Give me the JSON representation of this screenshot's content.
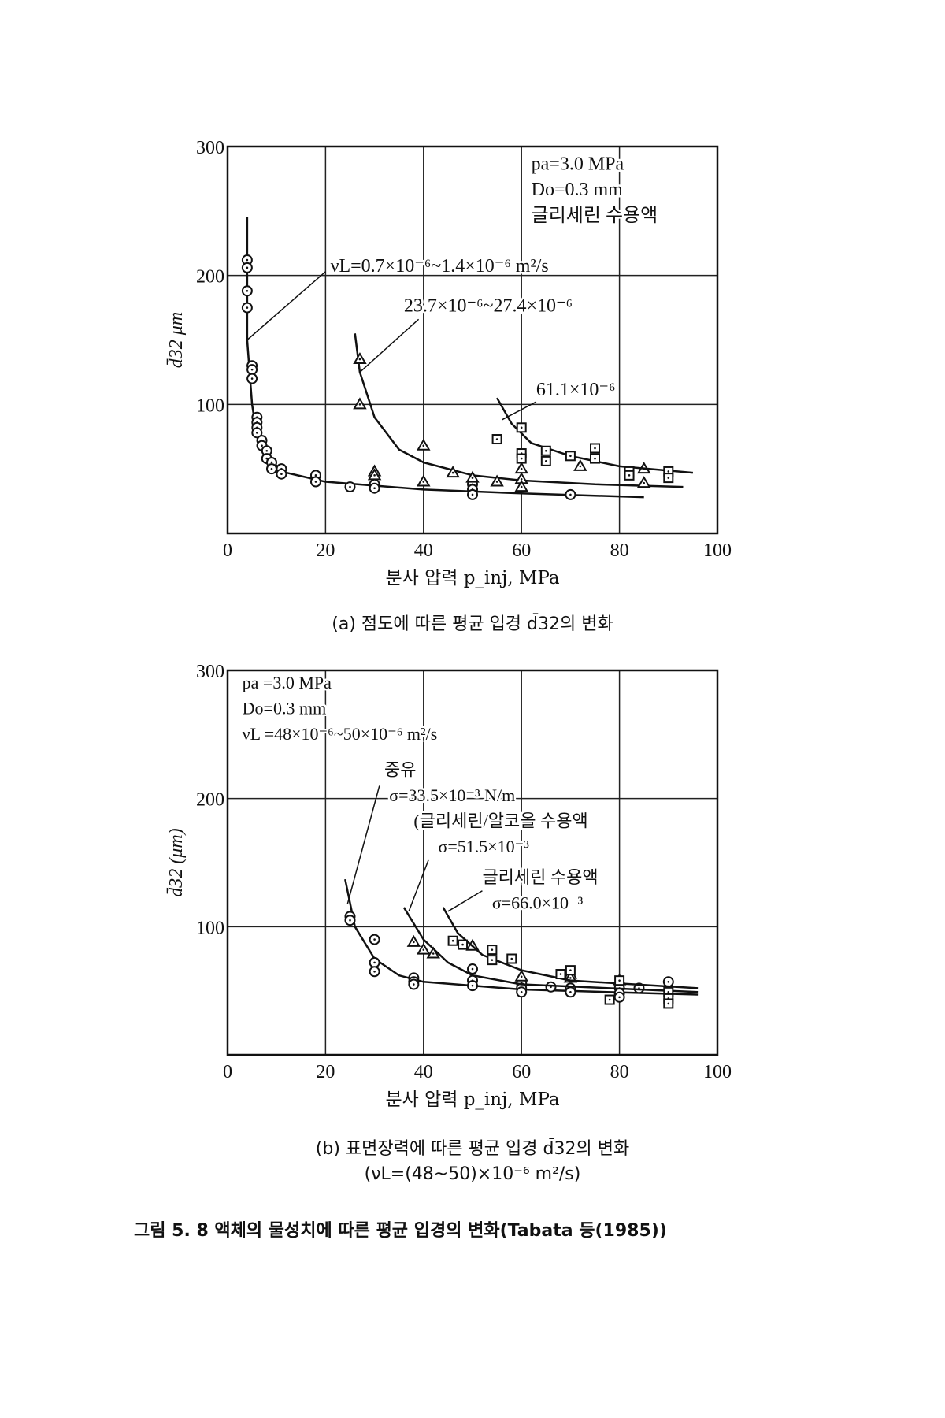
{
  "chart_data": [
    {
      "type": "scatter",
      "title": "(a) 점도에 따른 평균 입경 d̄32의 변화",
      "xlabel": "분사 압력 p_inj, MPa",
      "ylabel": "d̄32 μm",
      "xlim": [
        0,
        100
      ],
      "ylim": [
        0,
        300
      ],
      "xticks": [
        "0",
        "20",
        "40",
        "60",
        "80",
        "100"
      ],
      "yticks": [
        "100",
        "200",
        "300"
      ],
      "grid": true,
      "conditions": [
        "pa=3.0 MPa",
        "Do=0.3 mm",
        "글리세린 수용액"
      ],
      "series": [
        {
          "name": "νL=0.7×10⁻⁶~1.4×10⁻⁶ m²/s",
          "marker": "circle",
          "points": [
            [
              4,
              212
            ],
            [
              4,
              206
            ],
            [
              4,
              188
            ],
            [
              4,
              175
            ],
            [
              5,
              130
            ],
            [
              5,
              127
            ],
            [
              5,
              120
            ],
            [
              6,
              90
            ],
            [
              6,
              86
            ],
            [
              6,
              82
            ],
            [
              6,
              78
            ],
            [
              7,
              72
            ],
            [
              7,
              68
            ],
            [
              8,
              64
            ],
            [
              8,
              58
            ],
            [
              9,
              55
            ],
            [
              9,
              50
            ],
            [
              11,
              50
            ],
            [
              11,
              46
            ],
            [
              18,
              45
            ],
            [
              18,
              40
            ],
            [
              25,
              36
            ],
            [
              30,
              38
            ],
            [
              30,
              35
            ],
            [
              50,
              38
            ],
            [
              50,
              34
            ],
            [
              50,
              30
            ],
            [
              70,
              30
            ]
          ],
          "curve": [
            [
              4,
              245
            ],
            [
              4,
              150
            ],
            [
              5,
              100
            ],
            [
              6,
              75
            ],
            [
              8,
              58
            ],
            [
              12,
              47
            ],
            [
              20,
              40
            ],
            [
              40,
              34
            ],
            [
              60,
              31
            ],
            [
              85,
              28
            ]
          ]
        },
        {
          "name": "23.7×10⁻⁶~27.4×10⁻⁶",
          "marker": "triangle",
          "points": [
            [
              27,
              135
            ],
            [
              27,
              100
            ],
            [
              30,
              48
            ],
            [
              30,
              45
            ],
            [
              40,
              68
            ],
            [
              40,
              40
            ],
            [
              46,
              47
            ],
            [
              50,
              43
            ],
            [
              55,
              40
            ],
            [
              60,
              50
            ],
            [
              60,
              42
            ],
            [
              60,
              36
            ],
            [
              72,
              52
            ],
            [
              85,
              50
            ],
            [
              85,
              39
            ]
          ],
          "curve": [
            [
              26,
              155
            ],
            [
              27,
              125
            ],
            [
              30,
              90
            ],
            [
              35,
              65
            ],
            [
              40,
              55
            ],
            [
              50,
              45
            ],
            [
              60,
              41
            ],
            [
              75,
              38
            ],
            [
              93,
              36
            ]
          ]
        },
        {
          "name": "61.1×10⁻⁶",
          "marker": "square",
          "points": [
            [
              55,
              73
            ],
            [
              60,
              82
            ],
            [
              60,
              62
            ],
            [
              60,
              58
            ],
            [
              65,
              64
            ],
            [
              65,
              56
            ],
            [
              70,
              60
            ],
            [
              75,
              66
            ],
            [
              75,
              58
            ],
            [
              82,
              48
            ],
            [
              82,
              45
            ],
            [
              90,
              48
            ],
            [
              90,
              43
            ]
          ],
          "curve": [
            [
              55,
              105
            ],
            [
              58,
              85
            ],
            [
              62,
              70
            ],
            [
              70,
              60
            ],
            [
              80,
              52
            ],
            [
              95,
              47
            ]
          ]
        }
      ]
    },
    {
      "type": "scatter",
      "title": "(b) 표면장력에 따른 평균 입경 d̄32의 변화",
      "subtitle": "(νL=(48~50)×10⁻⁶ m²/s)",
      "xlabel": "분사 압력 p_inj, MPa",
      "ylabel": "d̄32 (μm)",
      "xlim": [
        0,
        100
      ],
      "ylim": [
        0,
        300
      ],
      "xticks": [
        "0",
        "20",
        "40",
        "60",
        "80",
        "100"
      ],
      "yticks": [
        "100",
        "200",
        "300"
      ],
      "grid": true,
      "conditions": [
        "pa =3.0 MPa",
        "Do=0.3 mm",
        "νL =48×10⁻⁶~50×10⁻⁶  m²/s"
      ],
      "series": [
        {
          "name": "중유",
          "label2": "σ=33.5×10⁻³ N/m",
          "marker": "circle",
          "points": [
            [
              25,
              108
            ],
            [
              25,
              105
            ],
            [
              30,
              90
            ],
            [
              30,
              72
            ],
            [
              30,
              65
            ],
            [
              38,
              60
            ],
            [
              38,
              57
            ],
            [
              38,
              55
            ],
            [
              50,
              67
            ],
            [
              50,
              58
            ],
            [
              50,
              54
            ],
            [
              60,
              56
            ],
            [
              60,
              52
            ],
            [
              60,
              49
            ],
            [
              66,
              53
            ],
            [
              70,
              52
            ],
            [
              70,
              49
            ],
            [
              80,
              52
            ],
            [
              80,
              48
            ],
            [
              80,
              45
            ],
            [
              84,
              52
            ],
            [
              90,
              57
            ]
          ],
          "curve": [
            [
              24,
              137
            ],
            [
              26,
              100
            ],
            [
              30,
              75
            ],
            [
              35,
              62
            ],
            [
              40,
              57
            ],
            [
              60,
              51
            ],
            [
              96,
              47
            ]
          ]
        },
        {
          "name": "(글리세린/알코올 수용액",
          "label2": "σ=51.5×10⁻³",
          "marker": "triangle",
          "points": [
            [
              38,
              88
            ],
            [
              40,
              82
            ],
            [
              42,
              79
            ],
            [
              50,
              85
            ],
            [
              60,
              61
            ],
            [
              70,
              63
            ],
            [
              70,
              60
            ],
            [
              80,
              58
            ]
          ],
          "curve": [
            [
              36,
              115
            ],
            [
              40,
              90
            ],
            [
              45,
              72
            ],
            [
              50,
              62
            ],
            [
              60,
              55
            ],
            [
              96,
              49
            ]
          ]
        },
        {
          "name": "글리세린 수용액",
          "label2": "σ=66.0×10⁻³",
          "marker": "square",
          "points": [
            [
              46,
              89
            ],
            [
              48,
              86
            ],
            [
              54,
              82
            ],
            [
              54,
              74
            ],
            [
              58,
              75
            ],
            [
              68,
              63
            ],
            [
              70,
              66
            ],
            [
              78,
              43
            ],
            [
              80,
              58
            ],
            [
              90,
              49
            ],
            [
              90,
              44
            ],
            [
              90,
              40
            ]
          ],
          "curve": [
            [
              44,
              115
            ],
            [
              47,
              95
            ],
            [
              52,
              78
            ],
            [
              60,
              66
            ],
            [
              70,
              58
            ],
            [
              96,
              52
            ]
          ]
        }
      ]
    }
  ],
  "captions": {
    "a": "(a) 점도에 따른 평균 입경 d̄32의 변화",
    "b1": "(b) 표면장력에 따른 평균 입경 d̄32의 변화",
    "b2": "(νL=(48~50)×10⁻⁶ m²/s)",
    "figure": "그림 5. 8   액체의 물성치에 따른 평균 입경의 변화(Tabata 등(1985))"
  }
}
